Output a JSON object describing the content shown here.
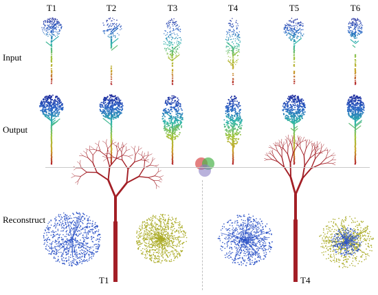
{
  "columns": [
    "T1",
    "T2",
    "T3",
    "T4",
    "T5",
    "T6"
  ],
  "rows": {
    "input": "Input",
    "output": "Output",
    "reconstruct": "Reconstruct"
  },
  "reconstruct_labels": [
    "T1",
    "T4"
  ],
  "colors": {
    "gradient": [
      "#b3202a",
      "#c9a227",
      "#9fc43a",
      "#2cb5a8",
      "#2a63c7",
      "#1f2a9c"
    ],
    "skeleton": "#a31f26",
    "leaves_blue": "#2f55c7",
    "leaves_yellow": "#a9aa23",
    "venn": [
      "#d94a4a",
      "#4cb34c",
      "#8a7fc4"
    ]
  }
}
